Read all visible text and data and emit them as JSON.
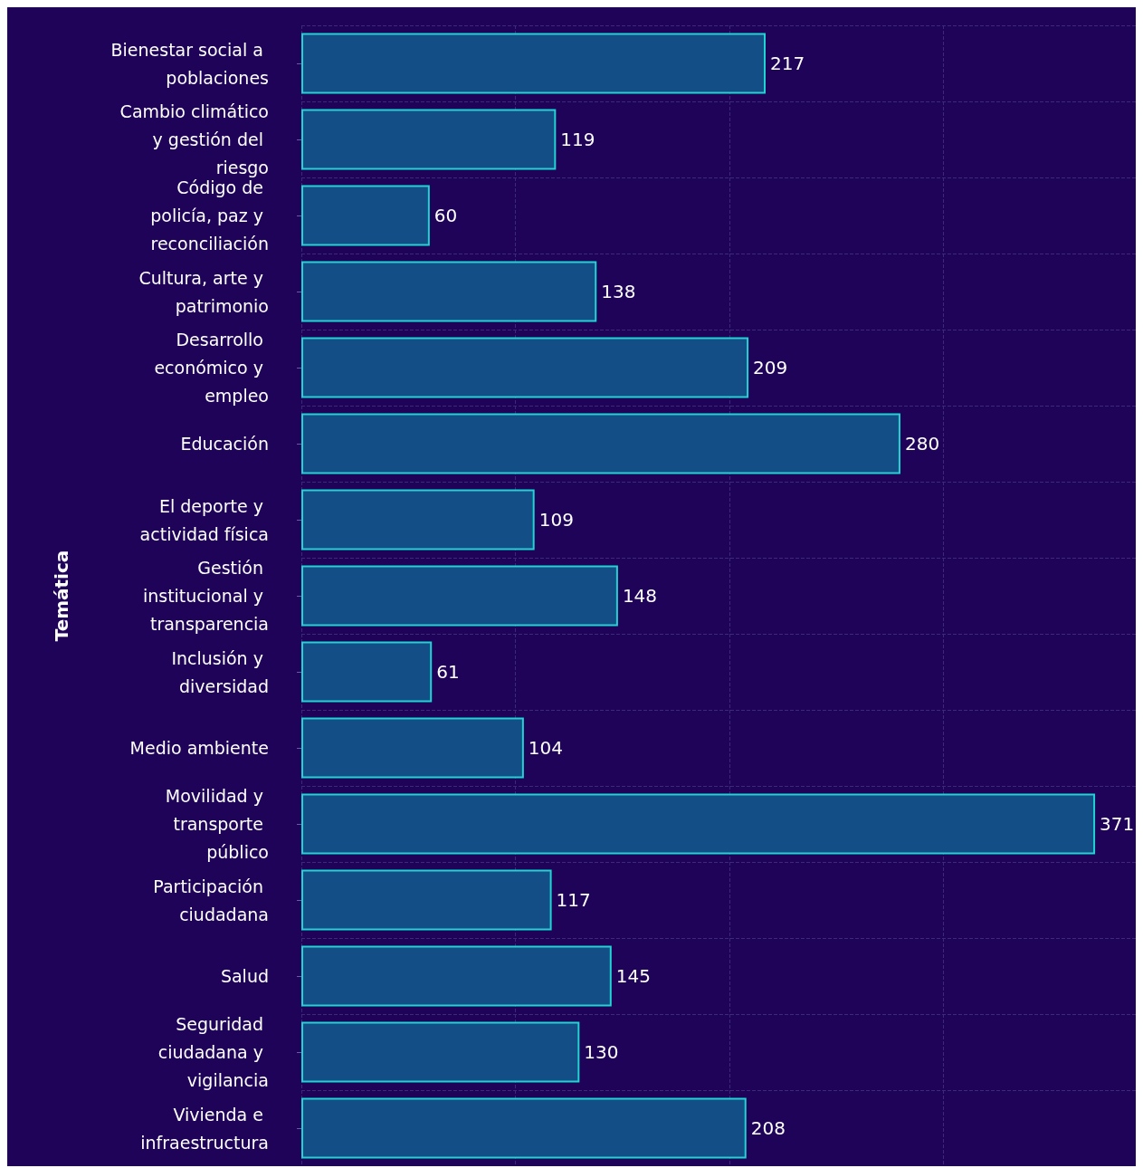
{
  "chart_data": {
    "type": "bar",
    "orientation": "horizontal",
    "ylabel": "Temática",
    "categories": [
      "Bienestar social a poblaciones",
      "Cambio climático y gestión del riesgo",
      "Código de policía, paz y reconciliación",
      "Cultura, arte y patrimonio",
      "Desarrollo económico y empleo",
      "Educación",
      "El deporte y actividad física",
      "Gestión institucional y transparencia",
      "Inclusión y diversidad",
      "Medio ambiente",
      "Movilidad y transporte público",
      "Participación ciudadana",
      "Salud",
      "Seguridad ciudadana y vigilancia",
      "Vivienda e infraestructura"
    ],
    "values": [
      217,
      119,
      60,
      138,
      209,
      280,
      109,
      148,
      61,
      104,
      371,
      117,
      145,
      130,
      208
    ],
    "color": "#134f86",
    "data_labels": true,
    "grid": true,
    "tick_labels": "y",
    "xlim": [
      0,
      390
    ],
    "xticks": [
      {
        "value": 0,
        "label": null
      },
      {
        "value": 100,
        "label": null
      },
      {
        "value": 200,
        "label": null
      },
      {
        "value": 300,
        "label": null
      }
    ]
  }
}
